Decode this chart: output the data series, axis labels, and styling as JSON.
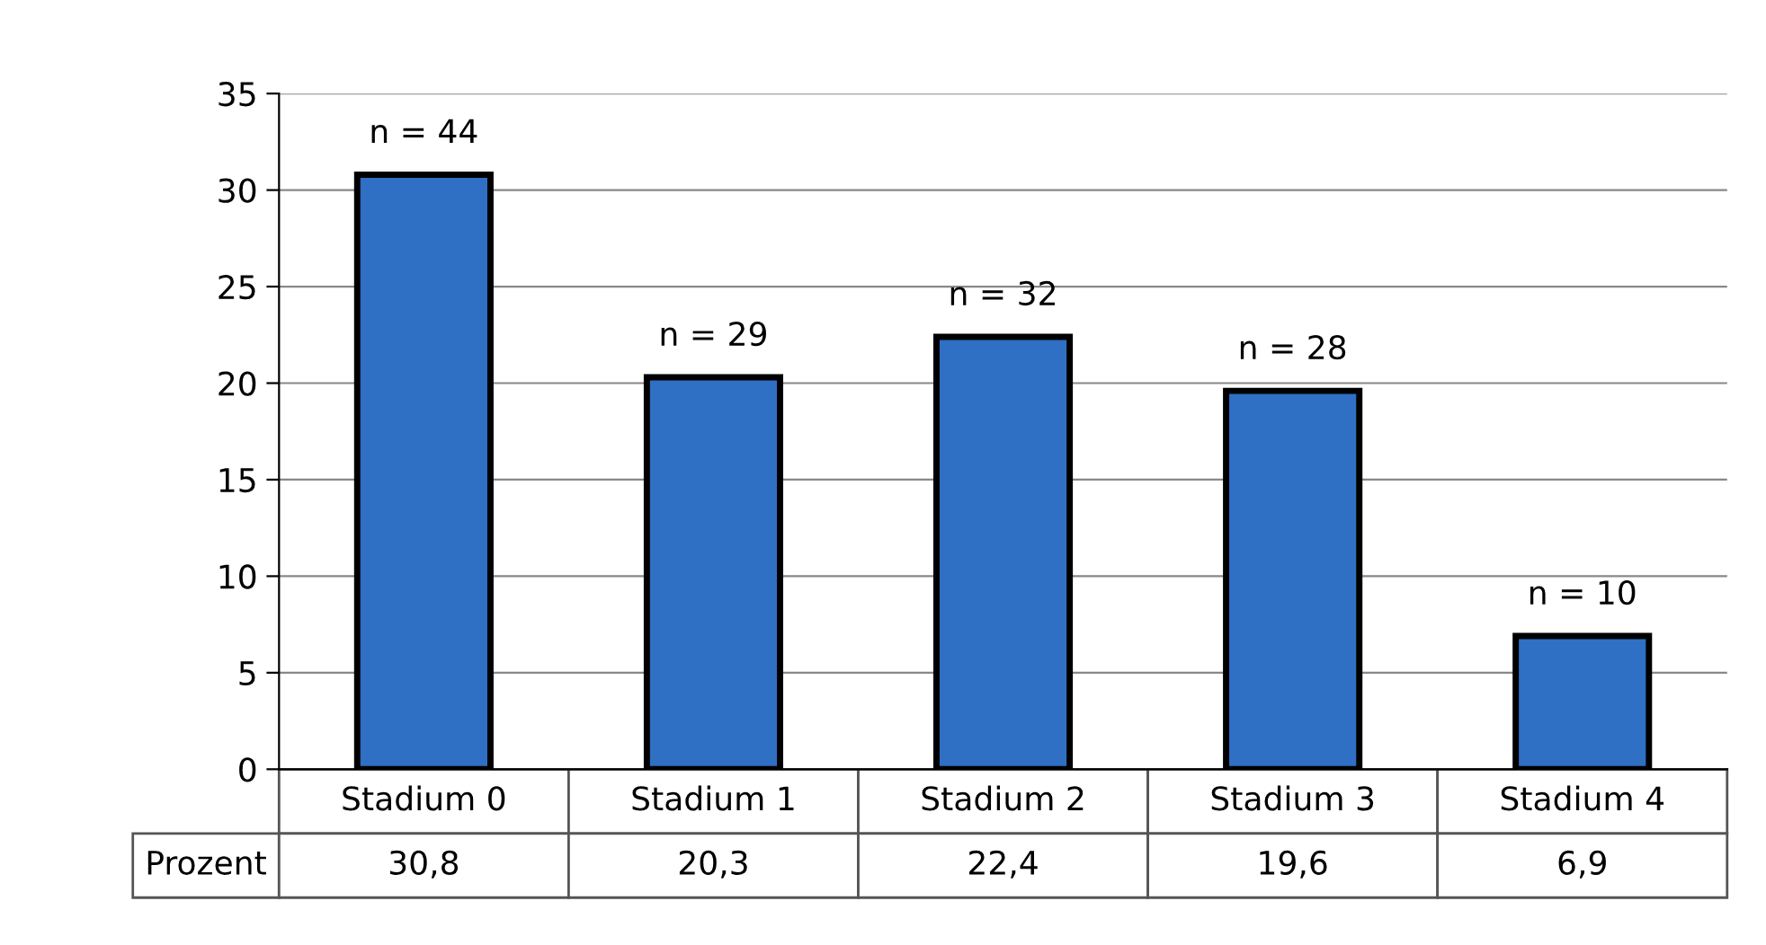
{
  "chart_data": {
    "type": "bar",
    "categories": [
      "Stadium 0",
      "Stadium 1",
      "Stadium 2",
      "Stadium 3",
      "Stadium 4"
    ],
    "series": [
      {
        "name": "Prozent",
        "color": "#2f6fc4",
        "values": [
          30.8,
          20.3,
          22.4,
          19.6,
          6.9
        ],
        "value_labels": [
          "30,8",
          "20,3",
          "22,4",
          "19,6",
          "6,9"
        ]
      }
    ],
    "ylim": [
      0,
      35
    ],
    "yticks": [
      0,
      5,
      10,
      15,
      20,
      25,
      30,
      35
    ],
    "grid": "y",
    "legend": false,
    "annotations": [
      {
        "text": "n = 44",
        "x": "Stadium 0",
        "y": 30.8
      },
      {
        "text": "n = 29",
        "x": "Stadium 1",
        "y": 20.3
      },
      {
        "text": "n = 32",
        "x": "Stadium 2",
        "y": 22.4
      },
      {
        "text": "n = 28",
        "x": "Stadium 3",
        "y": 19.6
      },
      {
        "text": "n = 10",
        "x": "Stadium 4",
        "y": 6.9
      }
    ]
  }
}
